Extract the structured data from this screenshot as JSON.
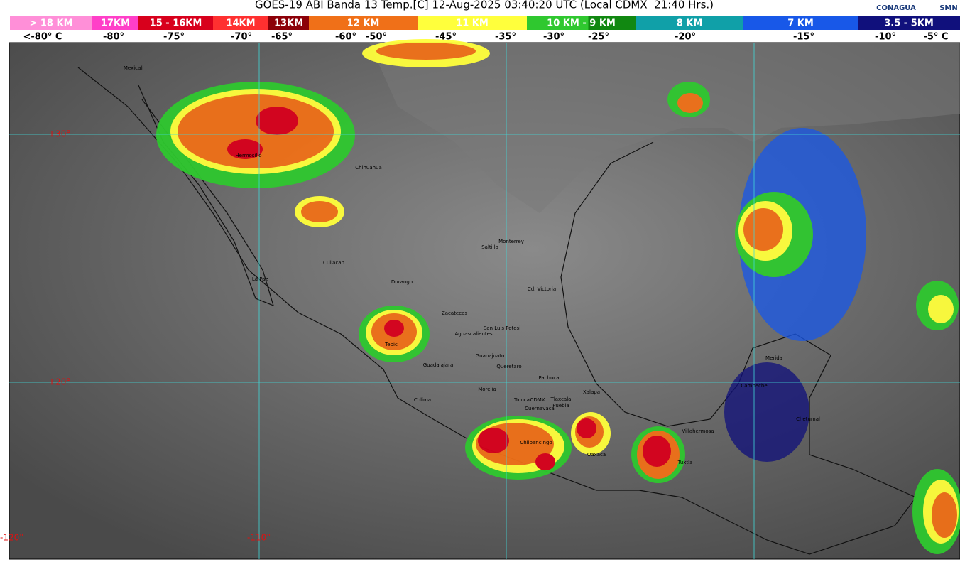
{
  "header": {
    "title": "GOES-19 ABI Banda 13 Temp.[C] 12-Aug-2025 03:40:20 UTC (Local CDMX  21:40 Hrs.)",
    "logos": [
      "CONAGUA",
      "SMN"
    ]
  },
  "legend": {
    "bands": [
      {
        "label": "> 18 KM",
        "color": "#ff8fd8"
      },
      {
        "label": "17KM",
        "color": "#ff3fc8"
      },
      {
        "label": "15 - 16KM",
        "color": "#d8001c"
      },
      {
        "label": "14KM",
        "color": "#ff3030"
      },
      {
        "label": "13KM",
        "color": "#8c0008"
      },
      {
        "label": "12 KM",
        "color": "#f07018"
      },
      {
        "label": "11 KM",
        "color": "#ffff3c"
      },
      {
        "label": "10 KM - 9 KM",
        "color": "#2fc82f"
      },
      {
        "label": "8 KM",
        "color": "#10a0a8"
      },
      {
        "label": "7 KM",
        "color": "#1858e8"
      },
      {
        "label": "3.5 - 5KM",
        "color": "#10107c"
      }
    ],
    "temperatures": [
      "<-80° C",
      "-80°",
      "-75°",
      "-70°",
      "-65°",
      "-60°",
      "-50°",
      "-45°",
      "-35°",
      "-30°",
      "-25°",
      "-20°",
      "-15°",
      "-10°",
      "-5° C"
    ]
  },
  "map": {
    "latitudes": [
      "+30°",
      "+20°"
    ],
    "longitudes": [
      "-120°",
      "-110°"
    ],
    "cities": [
      "Mexicali",
      "Hermosillo",
      "Chihuahua",
      "Monterrey",
      "Saltillo",
      "Culiacan",
      "La Paz",
      "Durango",
      "Cd. Victoria",
      "Zacatecas",
      "San Luis Potosi",
      "Aguascalientes",
      "Tepic",
      "Guanajuato",
      "Guadalajara",
      "Queretaro",
      "Pachuca",
      "Morelia",
      "Xalapa",
      "Toluca",
      "CDMX",
      "Tlaxcala",
      "Puebla",
      "Colima",
      "Cuernavaca",
      "Chilpancingo",
      "Oaxaca",
      "Villahermosa",
      "Tuxtla",
      "Merida",
      "Campeche",
      "Chetumal"
    ]
  }
}
